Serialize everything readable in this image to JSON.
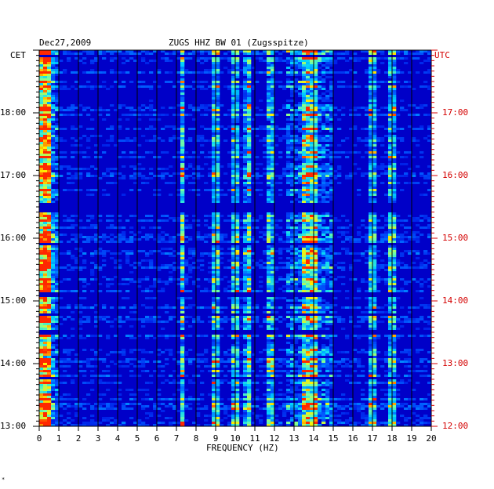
{
  "header": {
    "date": "Dec27,2009",
    "station": "ZUGS HHZ BW 01 (Zugsspitze)"
  },
  "chart_data": {
    "type": "heatmap",
    "title": "ZUGS HHZ BW 01 (Zugsspitze)",
    "date": "Dec27,2009",
    "xlabel": "FREQUENCY (HZ)",
    "xlim": [
      0,
      20
    ],
    "x_ticks": [
      "0",
      "1",
      "2",
      "3",
      "4",
      "5",
      "6",
      "7",
      "8",
      "9",
      "10",
      "11",
      "12",
      "13",
      "14",
      "15",
      "16",
      "17",
      "18",
      "19",
      "20"
    ],
    "y_left_label": "CET",
    "y_right_label": "UTC",
    "y_left_ticks": [
      "13:00",
      "14:00",
      "15:00",
      "16:00",
      "17:00",
      "18:00"
    ],
    "y_right_ticks": [
      "12:00",
      "13:00",
      "14:00",
      "15:00",
      "16:00",
      "17:00"
    ],
    "time_range_utc_hours": [
      12.0,
      18.0
    ],
    "grid": true,
    "colors": {
      "low": "#0000c8",
      "mid": "#00c8ff",
      "high": "#ffff00",
      "peak": "#ff2000",
      "grid": "#000000",
      "utc": "#d40000"
    },
    "spectral_lines_hz": [
      0.3,
      0.5,
      7.3,
      9.0,
      10.0,
      10.7,
      11.8,
      13.6,
      14.0,
      17.0,
      18.0
    ],
    "quiet_bands_utc": [
      [
        17.88,
        17.92
      ],
      [
        15.42,
        15.58
      ],
      [
        14.88,
        14.92
      ],
      [
        14.08,
        14.12
      ],
      [
        13.75,
        13.8
      ],
      [
        13.48,
        13.52
      ],
      [
        12.75,
        12.8
      ]
    ]
  }
}
